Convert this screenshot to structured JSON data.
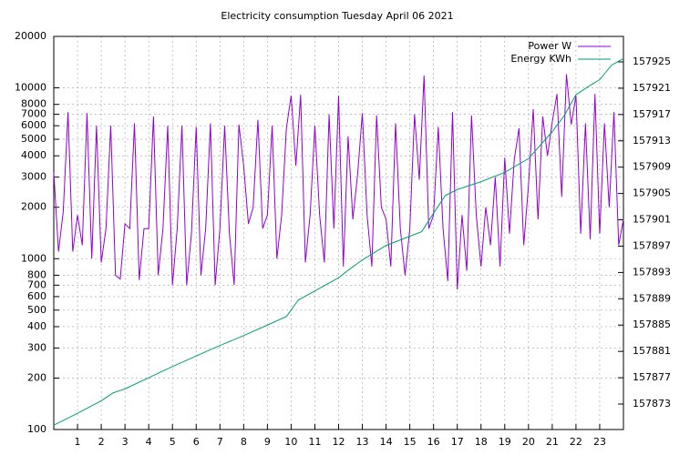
{
  "chart_data": {
    "type": "line",
    "title": "Electricity consumption Tuesday April 06 2021",
    "xlim": [
      0,
      24
    ],
    "xticks": [
      1,
      2,
      3,
      4,
      5,
      6,
      7,
      8,
      9,
      10,
      11,
      12,
      13,
      14,
      15,
      16,
      17,
      18,
      19,
      20,
      21,
      22,
      23
    ],
    "ylim": [
      100,
      20000
    ],
    "log_y": true,
    "yticks": [
      100,
      200,
      300,
      400,
      500,
      600,
      700,
      800,
      1000,
      2000,
      3000,
      4000,
      5000,
      6000,
      7000,
      8000,
      10000,
      20000
    ],
    "y2lim": [
      157869.13,
      157928.87
    ],
    "y2ticks": [
      157873,
      157877,
      157881,
      157885,
      157889,
      157893,
      157897,
      157901,
      157905,
      157909,
      157913,
      157917,
      157921,
      157925
    ],
    "grid": true,
    "legend": "top-right",
    "series": [
      {
        "name": "Power W",
        "color": "#9400d3",
        "x": [
          0,
          0.2,
          0.4,
          0.6,
          0.8,
          1,
          1.2,
          1.4,
          1.6,
          1.8,
          2,
          2.2,
          2.4,
          2.6,
          2.8,
          3,
          3.2,
          3.4,
          3.6,
          3.8,
          4,
          4.2,
          4.4,
          4.6,
          4.8,
          5,
          5.2,
          5.4,
          5.6,
          5.8,
          6,
          6.2,
          6.4,
          6.6,
          6.8,
          7,
          7.2,
          7.4,
          7.6,
          7.8,
          8,
          8.2,
          8.4,
          8.6,
          8.8,
          9,
          9.2,
          9.4,
          9.6,
          9.8,
          10,
          10.2,
          10.4,
          10.6,
          10.8,
          11,
          11.2,
          11.4,
          11.6,
          11.8,
          12,
          12.2,
          12.4,
          12.6,
          12.8,
          13,
          13.2,
          13.4,
          13.6,
          13.8,
          14,
          14.2,
          14.4,
          14.6,
          14.8,
          15,
          15.2,
          15.4,
          15.6,
          15.8,
          16,
          16.2,
          16.4,
          16.6,
          16.8,
          17,
          17.2,
          17.4,
          17.6,
          17.8,
          18,
          18.2,
          18.4,
          18.6,
          18.8,
          19,
          19.2,
          19.4,
          19.6,
          19.8,
          20,
          20.2,
          20.4,
          20.6,
          20.8,
          21,
          21.2,
          21.4,
          21.6,
          21.8,
          22,
          22.2,
          22.4,
          22.6,
          22.8,
          23,
          23.2,
          23.4,
          23.6,
          23.8,
          24
        ],
        "values": [
          3200,
          1100,
          1900,
          7200,
          1100,
          1800,
          1200,
          7100,
          1000,
          6000,
          950,
          1500,
          6000,
          800,
          760,
          1600,
          1500,
          6200,
          750,
          1500,
          1500,
          6800,
          800,
          1500,
          6000,
          700,
          1500,
          6000,
          700,
          1400,
          5900,
          800,
          1500,
          6200,
          700,
          1500,
          6000,
          1400,
          700,
          6100,
          3500,
          1600,
          2000,
          6500,
          1500,
          1800,
          6000,
          1000,
          1800,
          5800,
          9000,
          3500,
          9100,
          950,
          1800,
          6000,
          1800,
          950,
          7000,
          1500,
          9000,
          900,
          5200,
          1700,
          3100,
          7100,
          1800,
          900,
          6900,
          2000,
          1700,
          900,
          6200,
          1500,
          800,
          1500,
          7000,
          2900,
          11800,
          1500,
          1800,
          5900,
          1500,
          740,
          7200,
          660,
          1800,
          850,
          6900,
          1800,
          900,
          2000,
          1200,
          3000,
          900,
          3900,
          1400,
          3800,
          5800,
          1200,
          2700,
          7500,
          1700,
          6800,
          4000,
          6300,
          9200,
          2300,
          12000,
          6100,
          9000,
          1400,
          6200,
          1300,
          9200,
          1400,
          6200,
          2000,
          7200,
          1200,
          1700
        ]
      },
      {
        "name": "Energy KWh",
        "color": "#009e73",
        "axis": "y2",
        "x": [
          0,
          1,
          2,
          2.5,
          3,
          4,
          5,
          6,
          7,
          8,
          9,
          9.8,
          10.3,
          11,
          12,
          12.5,
          13,
          14,
          15,
          15.5,
          16,
          16.5,
          17,
          18,
          19,
          20,
          21,
          21.5,
          22,
          22.5,
          23,
          23.5,
          24
        ],
        "values": [
          157869.8,
          157871.6,
          157873.5,
          157874.7,
          157875.3,
          157877.0,
          157878.7,
          157880.3,
          157881.9,
          157883.4,
          157885.0,
          157886.3,
          157888.8,
          157890.2,
          157892.2,
          157893.6,
          157894.9,
          157897.1,
          157898.5,
          157899.2,
          157902.0,
          157904.7,
          157905.6,
          157906.8,
          157908.2,
          157910.3,
          157914.4,
          157916.8,
          157920.0,
          157921.2,
          157922.3,
          157924.5,
          157925.5
        ]
      }
    ]
  }
}
